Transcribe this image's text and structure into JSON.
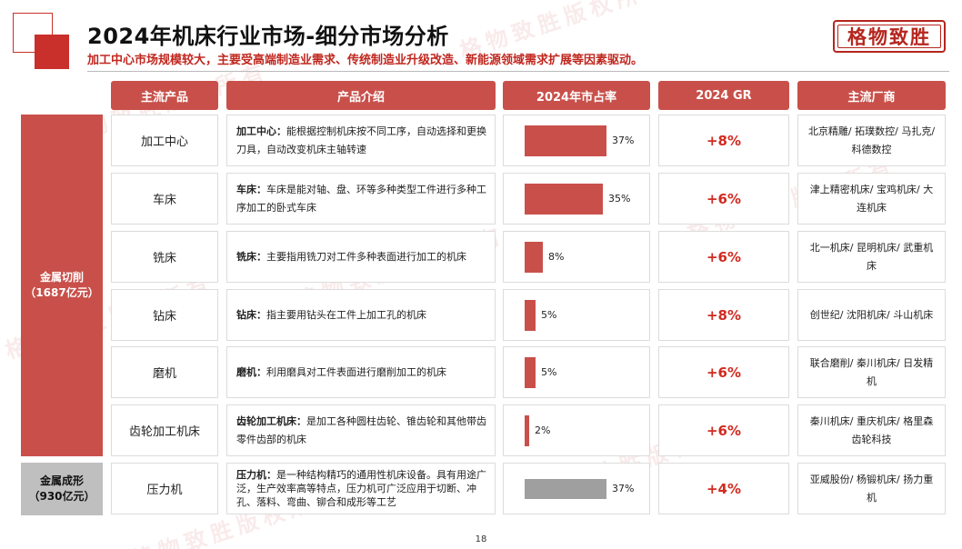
{
  "header": {
    "title": "2024年机床行业市场-细分市场分析",
    "subtitle": "加工中心市场规模较大，主要受高端制造业需求、传统制造业升级改造、新能源领域需求扩展等因素驱动。",
    "logo_text": "格物致胜"
  },
  "watermark_text": "格物致胜版权所有",
  "columns": [
    "主流产品",
    "产品介绍",
    "2024年市占率",
    "2024 GR",
    "主流厂商"
  ],
  "groups": [
    {
      "line1": "金属切削",
      "line2": "（1687亿元）"
    },
    {
      "line1": "金属成形",
      "line2": "（930亿元）"
    }
  ],
  "rows": [
    {
      "name": "加工中心",
      "desc_term": "加工中心：",
      "desc_body": "能根据控制机床按不同工序，自动选择和更换刀具，自动改变机床主轴转速",
      "share": 37,
      "share_label": "37%",
      "gr": "+8%",
      "makers": "北京精雕/ 拓璞数控/ 马扎克/ 科德数控"
    },
    {
      "name": "车床",
      "desc_term": "车床：",
      "desc_body": "车床是能对轴、盘、环等多种类型工件进行多种工序加工的卧式车床",
      "share": 35,
      "share_label": "35%",
      "gr": "+6%",
      "makers": "津上精密机床/ 宝鸡机床/ 大连机床"
    },
    {
      "name": "铣床",
      "desc_term": "铣床：",
      "desc_body": "主要指用铣刀对工件多种表面进行加工的机床",
      "share": 8,
      "share_label": "8%",
      "gr": "+6%",
      "makers": "北一机床/ 昆明机床/ 武重机床"
    },
    {
      "name": "钻床",
      "desc_term": "钻床：",
      "desc_body": "指主要用钻头在工件上加工孔的机床",
      "share": 5,
      "share_label": "5%",
      "gr": "+8%",
      "makers": "创世纪/ 沈阳机床/ 斗山机床"
    },
    {
      "name": "磨机",
      "desc_term": "磨机：",
      "desc_body": "利用磨具对工件表面进行磨削加工的机床",
      "share": 5,
      "share_label": "5%",
      "gr": "+6%",
      "makers": "联合磨削/ 秦川机床/ 日发精机"
    },
    {
      "name": "齿轮加工机床",
      "desc_term": "齿轮加工机床：",
      "desc_body": "是加工各种圆柱齿轮、锥齿轮和其他带齿零件齿部的机床",
      "share": 2,
      "share_label": "2%",
      "gr": "+6%",
      "makers": "秦川机床/ 重庆机床/ 格里森齿轮科技"
    },
    {
      "name": "压力机",
      "desc_term": "压力机：",
      "desc_body": "是一种结构精巧的通用性机床设备。具有用途广泛，生产效率高等特点，压力机可广泛应用于切断、冲孔、落料、弯曲、铆合和成形等工艺",
      "share": 37,
      "share_label": "37%",
      "gr": "+4%",
      "makers": "亚威股份/ 杨锻机床/ 扬力重机"
    }
  ],
  "page_number": "18",
  "colors": {
    "accent": "#c9504a",
    "gray_bar": "#9f9f9f",
    "growth_text": "#d12a20"
  }
}
